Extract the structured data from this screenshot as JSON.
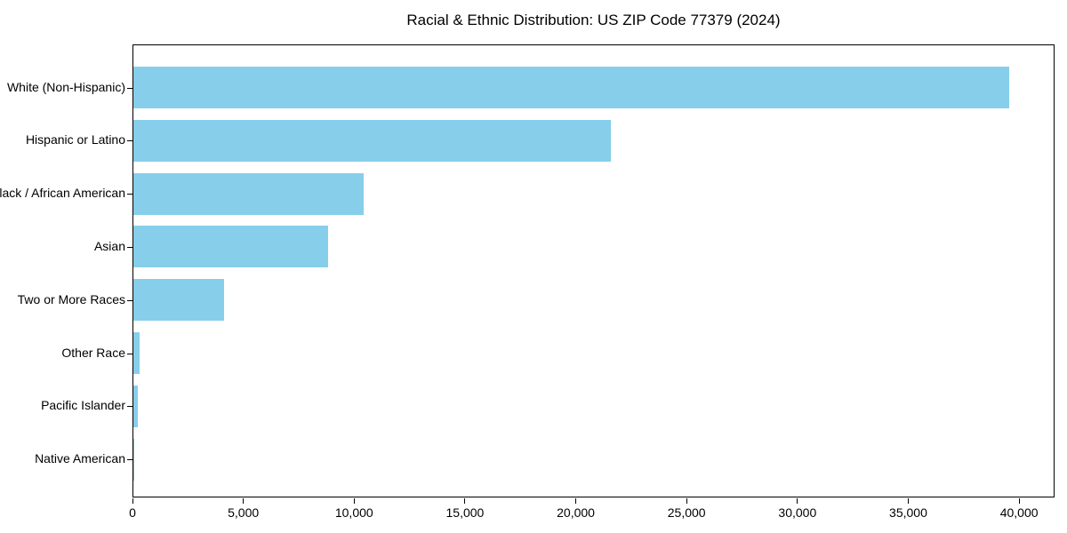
{
  "title": "Racial & Ethnic Distribution: US ZIP Code 77379 (2024)",
  "colors": {
    "bar": "#87CEEB",
    "axis": "#000000",
    "background": "#ffffff"
  },
  "chart_data": {
    "type": "bar",
    "orientation": "horizontal",
    "title": "Racial & Ethnic Distribution: US ZIP Code 77379 (2024)",
    "categories": [
      "White (Non-Hispanic)",
      "Hispanic or Latino",
      "Black / African American",
      "Asian",
      "Two or More Races",
      "Other Race",
      "Pacific Islander",
      "Native American"
    ],
    "values": [
      39600,
      21600,
      10400,
      8800,
      4100,
      280,
      200,
      40
    ],
    "xlabel": "",
    "ylabel": "",
    "xlim": [
      0,
      41600
    ],
    "xticks": [
      0,
      5000,
      10000,
      15000,
      20000,
      25000,
      30000,
      35000,
      40000
    ],
    "xtick_labels": [
      "0",
      "5,000",
      "10,000",
      "15,000",
      "20,000",
      "25,000",
      "30,000",
      "35,000",
      "40,000"
    ],
    "bar_color": "#87CEEB",
    "grid": false,
    "legend": null
  }
}
